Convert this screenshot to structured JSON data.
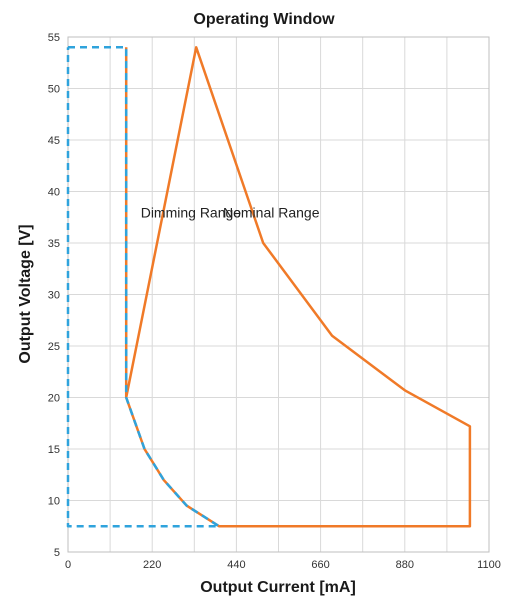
{
  "chart_data": {
    "type": "line",
    "title": "Operating Window",
    "xlabel": "Output Current [mA]",
    "ylabel": "Output Voltage [V]",
    "xlim": [
      0,
      1100
    ],
    "ylim": [
      5,
      55
    ],
    "x_ticks": [
      0,
      220,
      440,
      660,
      880,
      1100
    ],
    "y_ticks": [
      5,
      10,
      15,
      20,
      25,
      30,
      35,
      40,
      45,
      50,
      55
    ],
    "x_minor_step": 110,
    "grid": true,
    "colors": {
      "nominal": "#f07a28",
      "dimming": "#2fa3dc"
    },
    "series": [
      {
        "name": "Nominal Range",
        "style": "solid",
        "color": "#f07a28",
        "x": [
          152,
          152,
          335,
          510,
          690,
          880,
          1050,
          1050,
          395,
          310,
          250,
          200,
          152
        ],
        "y": [
          54,
          20,
          54,
          35,
          26,
          20.7,
          17.2,
          7.5,
          7.5,
          9.5,
          12,
          15,
          20
        ]
      },
      {
        "name": "Dimming Range",
        "style": "dashed",
        "color": "#2fa3dc",
        "x": [
          0,
          152,
          152,
          200,
          250,
          310,
          395,
          0,
          0
        ],
        "y": [
          54,
          54,
          20,
          15,
          12,
          9.5,
          7.5,
          7.5,
          54
        ]
      }
    ],
    "annotations": [
      {
        "text": "Dimming Range",
        "x": 190,
        "y": 37.5
      },
      {
        "text": "Nominal Range",
        "x": 405,
        "y": 37.5
      }
    ]
  }
}
